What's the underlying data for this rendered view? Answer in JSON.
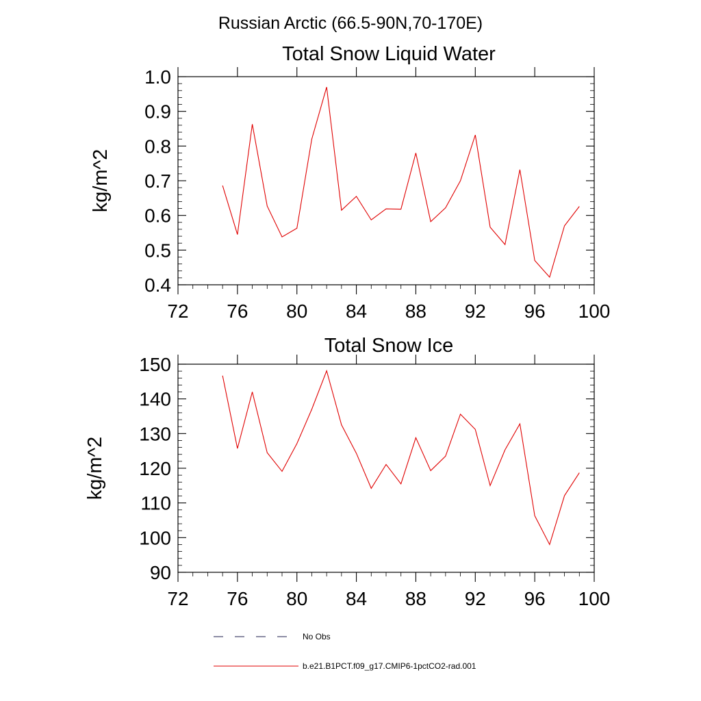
{
  "figure_title": "Russian Arctic (66.5-90N,70-170E)",
  "legend": {
    "items": [
      {
        "label": "No Obs",
        "style": "dashed",
        "color": "#1a1a4a"
      },
      {
        "label": "b.e21.B1PCT.f09_g17.CMIP6-1pctCO2-rad.001",
        "style": "solid",
        "color": "#e00000"
      }
    ]
  },
  "chart_data": [
    {
      "type": "line",
      "title": "Total Snow Liquid Water",
      "xlabel": "",
      "ylabel": "kg/m^2",
      "xlim": [
        72,
        100
      ],
      "ylim": [
        0.4,
        1.0
      ],
      "x_ticks": [
        "72",
        "76",
        "80",
        "84",
        "88",
        "92",
        "96",
        "100"
      ],
      "y_ticks": [
        "0.4",
        "0.5",
        "0.6",
        "0.7",
        "0.8",
        "0.9",
        "1.0"
      ],
      "grid": false,
      "series": [
        {
          "name": "b.e21.B1PCT.f09_g17.CMIP6-1pctCO2-rad.001",
          "color": "#e00000",
          "x": [
            75,
            76,
            77,
            78,
            79,
            80,
            81,
            82,
            83,
            84,
            85,
            86,
            87,
            88,
            89,
            90,
            91,
            92,
            93,
            94,
            95,
            96,
            97,
            98,
            99
          ],
          "values": [
            0.686,
            0.545,
            0.863,
            0.627,
            0.538,
            0.563,
            0.82,
            0.97,
            0.615,
            0.655,
            0.587,
            0.619,
            0.618,
            0.78,
            0.582,
            0.622,
            0.7,
            0.832,
            0.566,
            0.516,
            0.732,
            0.47,
            0.422,
            0.57,
            0.626
          ]
        }
      ]
    },
    {
      "type": "line",
      "title": "Total Snow Ice",
      "xlabel": "",
      "ylabel": "kg/m^2",
      "xlim": [
        72,
        100
      ],
      "ylim": [
        90,
        150
      ],
      "x_ticks": [
        "72",
        "76",
        "80",
        "84",
        "88",
        "92",
        "96",
        "100"
      ],
      "y_ticks": [
        "90",
        "100",
        "110",
        "120",
        "130",
        "140",
        "150"
      ],
      "grid": false,
      "series": [
        {
          "name": "b.e21.B1PCT.f09_g17.CMIP6-1pctCO2-rad.001",
          "color": "#e00000",
          "x": [
            75,
            76,
            77,
            78,
            79,
            80,
            81,
            82,
            83,
            84,
            85,
            86,
            87,
            88,
            89,
            90,
            91,
            92,
            93,
            94,
            95,
            96,
            97,
            98,
            99
          ],
          "values": [
            146.7,
            125.7,
            142.0,
            124.5,
            119.1,
            127.1,
            137.0,
            148.1,
            132.5,
            124.3,
            114.2,
            121.1,
            115.5,
            128.8,
            119.3,
            123.5,
            135.6,
            131.2,
            115.0,
            125.3,
            132.8,
            106.3,
            98.0,
            112.1,
            118.7
          ]
        }
      ]
    }
  ]
}
